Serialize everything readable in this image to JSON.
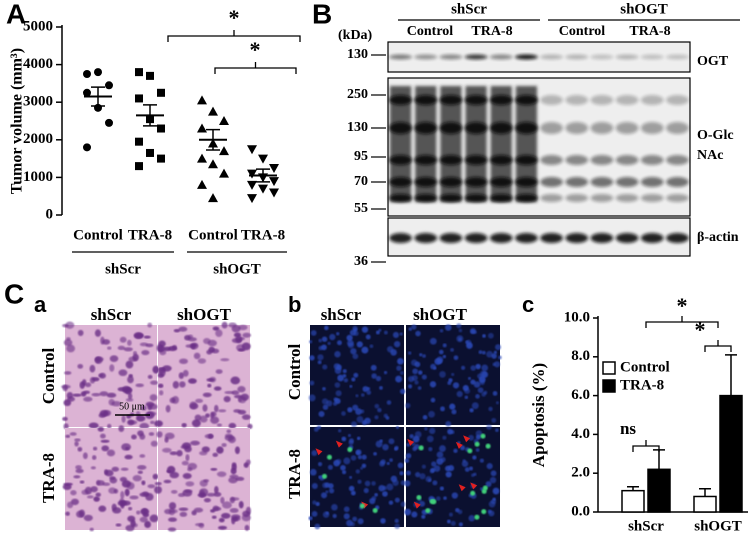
{
  "panel_labels": {
    "A": "A",
    "B": "B",
    "C": "C",
    "a": "a",
    "b": "b",
    "c": "c"
  },
  "chart_data": [
    {
      "type": "dot",
      "ylabel": "Tumor volume (mm³)",
      "categories": [
        "Control",
        "TRA-8",
        "Control",
        "TRA-8"
      ],
      "groups": [
        "shScr",
        "shOGT"
      ],
      "markers": [
        "circle",
        "square",
        "triangle",
        "triangle-down"
      ],
      "color": "#000000",
      "values": [
        [
          3750,
          3800,
          3450,
          3250,
          2850,
          2450,
          1800
        ],
        [
          3800,
          3700,
          3250,
          3100,
          2550,
          2300,
          1950,
          1650,
          1500,
          1300
        ],
        [
          3050,
          2750,
          2500,
          2300,
          1900,
          1700,
          1500,
          1350,
          1100,
          800,
          450
        ],
        [
          1750,
          1500,
          1250,
          1100,
          1000,
          900,
          800,
          700,
          600,
          450
        ]
      ],
      "mean": [
        3150,
        2650,
        2000,
        1050
      ],
      "sem": [
        250,
        280,
        270,
        170
      ],
      "ylim": [
        0,
        5000
      ],
      "yticks": [
        0,
        1000,
        2000,
        3000,
        4000,
        5000
      ],
      "annotations": [
        "*",
        "*"
      ]
    },
    {
      "type": "bar",
      "ylabel": "Apoptosis (%)",
      "categories": [
        "shScr",
        "shOGT"
      ],
      "series": [
        {
          "name": "Control",
          "color": "#ffffff",
          "values": [
            1.1,
            0.8
          ],
          "errors": [
            0.2,
            0.4
          ]
        },
        {
          "name": "TRA-8",
          "color": "#000000",
          "values": [
            2.2,
            6.0
          ],
          "errors": [
            1.0,
            2.1
          ]
        }
      ],
      "ylim": [
        0,
        10
      ],
      "yticks": [
        {
          "value": 0,
          "label": "0.0"
        },
        {
          "value": 2,
          "label": "2.0"
        },
        {
          "value": 4,
          "label": "4.0"
        },
        {
          "value": 6,
          "label": "6.0"
        },
        {
          "value": 8,
          "label": "8.0"
        },
        {
          "value": 10,
          "label": "10.0"
        }
      ],
      "legend": "upper left",
      "annotations": [
        "ns",
        "*",
        "*"
      ]
    }
  ],
  "blot": {
    "unit_label": "(kDa)",
    "groups": [
      "shScr",
      "shOGT"
    ],
    "lanes": [
      "Control",
      "TRA-8",
      "Control",
      "TRA-8"
    ],
    "markers": [
      130,
      250,
      130,
      95,
      70,
      55,
      36
    ],
    "proteins": [
      "OGT",
      "O-Glc",
      "NAc",
      "β-actin"
    ]
  },
  "histology": {
    "scale_bar": "50 μm",
    "columns": [
      "shScr",
      "shOGT"
    ],
    "rows": [
      "Control",
      "TRA-8"
    ]
  },
  "fluorescence": {
    "columns": [
      "shScr",
      "shOGT"
    ],
    "rows": [
      "Control",
      "TRA-8"
    ]
  }
}
